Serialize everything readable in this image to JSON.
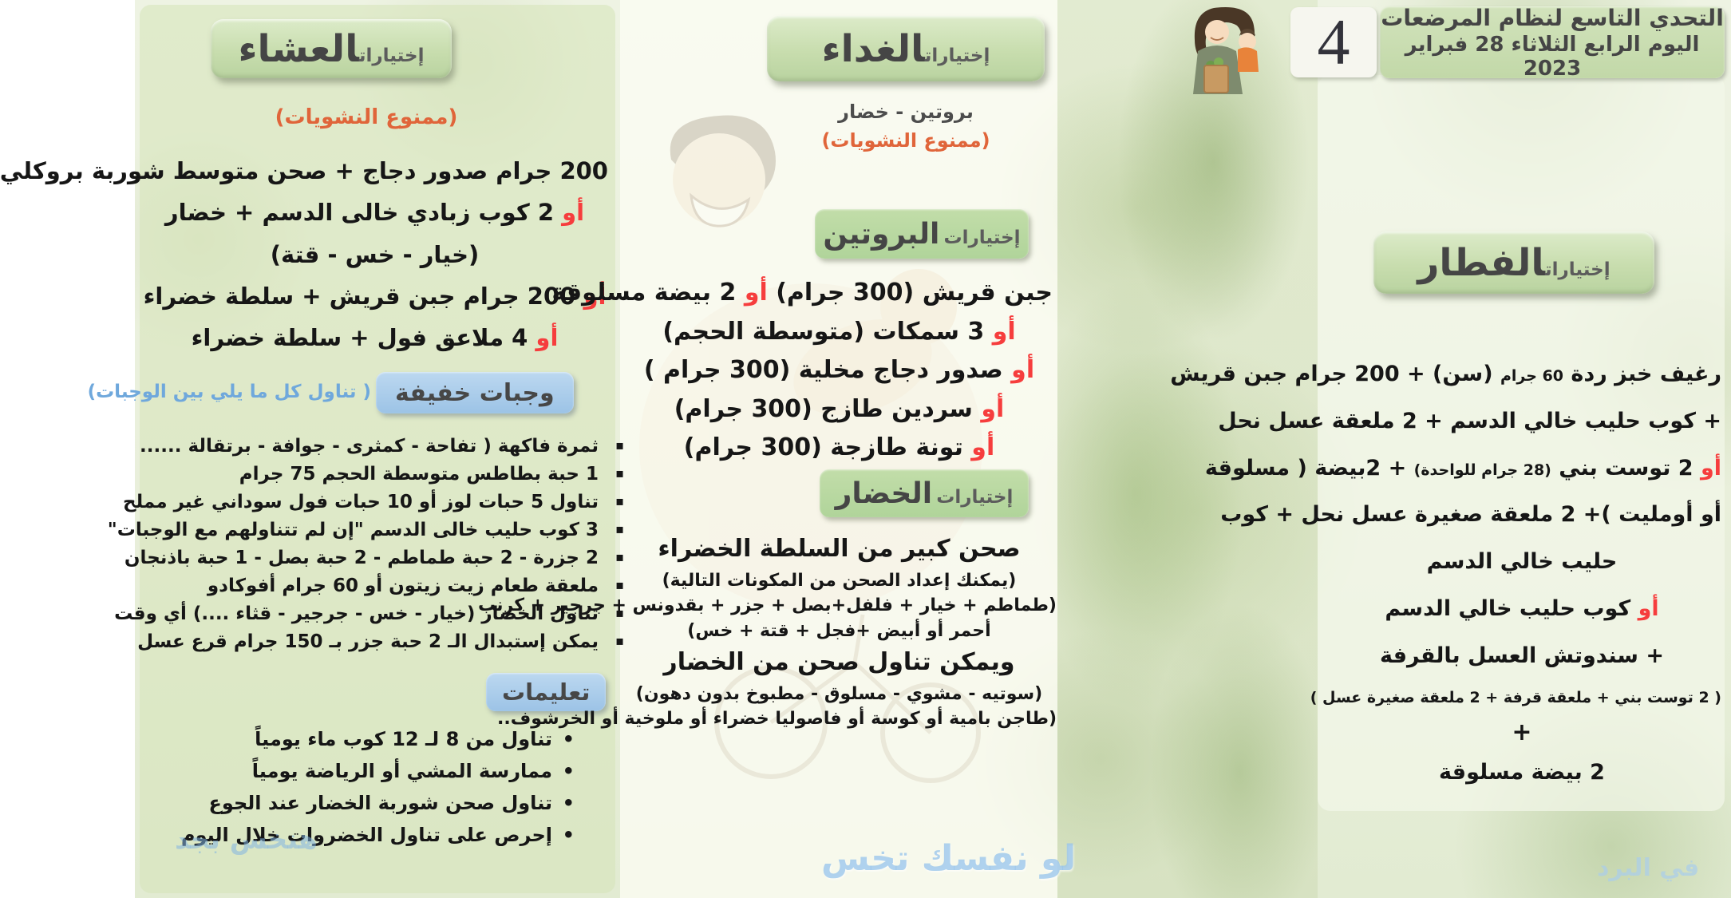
{
  "header": {
    "title_line1": "التحدي التاسع لنظام المرضعات",
    "title_line2": "اليوم الرابع الثلاثاء 28 فبراير 2023",
    "day_number": "4"
  },
  "breakfast": {
    "badge_small": "إختيارات",
    "badge_big": "الفطار",
    "lines": [
      {
        "seg": [
          {
            "t": "رغيف خبز ردة "
          },
          {
            "t": "60 جرام",
            "c": "sm"
          },
          {
            "t": " (سن) + 200  جرام جبن قريش"
          }
        ]
      },
      {
        "seg": [
          {
            "t": "+ كوب حليب خالي الدسم + 2 ملعقة عسل نحل"
          }
        ]
      },
      {
        "seg": [
          {
            "t": "أو",
            "c": "red"
          },
          {
            "t": " 2 توست بني "
          },
          {
            "t": "(28 جرام للواحدة)",
            "c": "sm"
          },
          {
            "t": " + 2بيضة ( مسلوقة"
          }
        ]
      },
      {
        "seg": [
          {
            "t": "أو أومليت )+  2 ملعقة صغيرة عسل نحل + كوب"
          }
        ]
      },
      {
        "seg": [
          {
            "t": "حليب خالي الدسم"
          }
        ]
      },
      {
        "seg": [
          {
            "t": "أو",
            "c": "red"
          },
          {
            "t": "  كوب حليب خالي الدسم"
          }
        ]
      },
      {
        "seg": [
          {
            "t": "+ سندوتش العسل بالقرفة"
          }
        ]
      },
      {
        "seg": [
          {
            "t": "( 2 توست بني + ملعقة قرفة + 2 ملعقة صغيرة عسل )"
          }
        ],
        "cls": "small"
      },
      {
        "seg": [
          {
            "t": "+"
          }
        ],
        "cls": "plus"
      },
      {
        "seg": [
          {
            "t": "2 بيضة مسلوقة"
          }
        ]
      }
    ]
  },
  "lunch": {
    "badge_small": "إختيارات",
    "badge_big": "الغداء",
    "subtitle": "بروتين - خضار",
    "warning": "(ممنوع النشويات)",
    "protein": {
      "badge_small": "إختيارات",
      "badge_big": "البروتين",
      "lines": [
        {
          "seg": [
            {
              "t": "جبن قريش (300 جرام) "
            },
            {
              "t": "أو",
              "c": "red"
            },
            {
              "t": " 2 بيضة مسلوقة"
            }
          ]
        },
        {
          "seg": [
            {
              "t": "أو",
              "c": "red"
            },
            {
              "t": " 3 سمكات (متوسطة الحجم)"
            }
          ]
        },
        {
          "seg": [
            {
              "t": "أو",
              "c": "red"
            },
            {
              "t": " صدور دجاج مخلية (300 جرام )"
            }
          ]
        },
        {
          "seg": [
            {
              "t": "أو",
              "c": "red"
            },
            {
              "t": " سردين طازج (300 جرام)"
            }
          ]
        },
        {
          "seg": [
            {
              "t": "أو",
              "c": "red"
            },
            {
              "t": " تونة طازجة  (300 جرام)"
            }
          ]
        }
      ]
    },
    "vegetables": {
      "badge_small": "إختيارات",
      "badge_big": "الخضار",
      "lines": [
        {
          "seg": [
            {
              "t": "صحن كبير من السلطة الخضراء"
            }
          ],
          "cls": "big"
        },
        {
          "seg": [
            {
              "t": "(يمكنك إعداد الصحن من المكونات التالية)"
            }
          ]
        },
        {
          "seg": [
            {
              "t": "(طماطم + خيار + فلفل+بصل + جزر + بقدونس + جرجير + كرنب"
            }
          ]
        },
        {
          "seg": [
            {
              "t": "أحمر أو أبيض +فجل + قتة + خس)"
            }
          ]
        },
        {
          "seg": [
            {
              "t": "ويمكن تناول صحن من الخضار"
            }
          ],
          "cls": "big"
        },
        {
          "seg": [
            {
              "t": "(سوتيه - مشوي - مسلوق - مطبوخ بدون دهون)"
            }
          ]
        },
        {
          "seg": [
            {
              "t": "(طاجن بامية أو كوسة أو فاصوليا خضراء أو ملوخية أو الخرشوف.."
            }
          ]
        }
      ]
    }
  },
  "dinner": {
    "badge_small": "إختيارات",
    "badge_big": "العشاء",
    "warning": "(ممنوع النشويات)",
    "lines": [
      {
        "seg": [
          {
            "t": "200 جرام صدور دجاج + صحن متوسط شوربة بروكلي"
          }
        ]
      },
      {
        "seg": [
          {
            "t": "أو",
            "c": "red"
          },
          {
            "t": " 2 كوب زبادي خالى الدسم + خضار"
          }
        ]
      },
      {
        "seg": [
          {
            "t": "(خيار - خس - قتة)"
          }
        ]
      },
      {
        "seg": [
          {
            "t": "أو",
            "c": "red"
          },
          {
            "t": " 200 جرام جبن قريش + سلطة خضراء"
          }
        ]
      },
      {
        "seg": [
          {
            "t": "أو",
            "c": "red"
          },
          {
            "t": " 4 ملاعق فول + سلطة خضراء"
          }
        ]
      }
    ]
  },
  "snacks": {
    "badge": "وجبات خفيفة",
    "note": "( تناول كل ما يلي بين الوجبات)",
    "items": [
      "ثمرة فاكهة ( تفاحة - كمثرى - جوافة - برتقالة ......",
      "1 حبة بطاطس متوسطة الحجم 75 جرام",
      "تناول 5 حبات لوز أو 10 حبات فول سوداني غير مملح",
      "3 كوب حليب خالى الدسم \"إن لم تتناولهم مع الوجبات\"",
      "2 جزرة - 2 حبة طماطم - 2 حبة بصل - 1 حبة باذنجان",
      "ملعقة طعام زيت زيتون أو 60 جرام أفوكادو",
      "تناول الخضار (خيار - خس - جرجير - قثاء ....) أي وقت",
      "يمكن إستبدال الـ 2 حبة جزر بـ 150 جرام قرع عسل"
    ]
  },
  "instructions": {
    "badge": "تعليمات",
    "items": [
      "تناول من 8 لـ 12 كوب ماء يومياً",
      "ممارسة المشي أو الرياضة يومياً",
      "تناول صحن شوربة الخضار عند الجوع",
      "إحرص على تناول الخضروات خلال اليوم"
    ]
  },
  "watermarks": {
    "bottom_left": "هنخس بجد",
    "bottom_center": "لو نفسك تخس",
    "bottom_right": "في البرد"
  },
  "colors": {
    "or_red": "#f63d3d",
    "warning_orange": "#e0653a",
    "note_blue": "#6fa8dc",
    "badge_green_light": "#cfe2b6",
    "badge_green": "#b7d7a2",
    "badge_blue": "#a7c9e9",
    "header_green": "#c9dcb2",
    "text_dark": "#161616",
    "title_gray": "#4a4a4a",
    "watermark_blue": "#a9cde9"
  }
}
